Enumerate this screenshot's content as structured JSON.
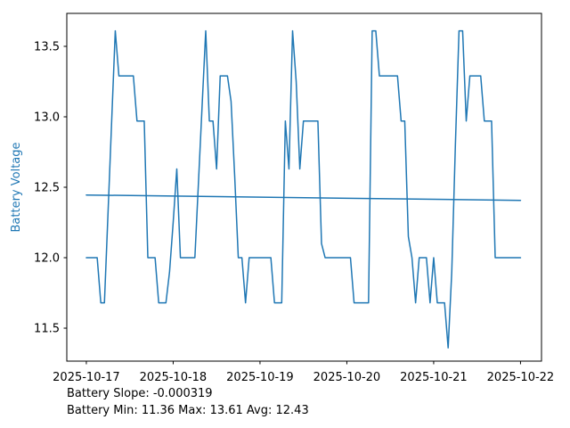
{
  "chart_data": {
    "type": "line",
    "title": "",
    "xlabel": "",
    "ylabel": "Battery Voltage",
    "grid": false,
    "legend": "none",
    "x_tick_labels": [
      "2025-10-17",
      "2025-10-18",
      "2025-10-19",
      "2025-10-20",
      "2025-10-21",
      "2025-10-22"
    ],
    "x_tick_hours": [
      0,
      24,
      48,
      72,
      96,
      120
    ],
    "y_tick_labels": [
      "11.5",
      "12.0",
      "12.5",
      "13.0",
      "13.5"
    ],
    "y_tick_values": [
      11.5,
      12.0,
      12.5,
      13.0,
      13.5
    ],
    "xlim_hours": [
      -5.4,
      125.8
    ],
    "ylim": [
      11.266,
      13.734
    ],
    "colors": {
      "series": "#1f77b4",
      "trend": "#1f77b4",
      "ylabel": "#1f77b4",
      "axis": "#000000",
      "text": "#000000",
      "background": "#ffffff"
    },
    "series": [
      {
        "name": "battery_voltage",
        "x_start_hour": 0,
        "x_step_hours": 1,
        "values": [
          12.0,
          12.0,
          12.0,
          12.0,
          11.68,
          11.68,
          12.32,
          12.97,
          13.61,
          13.29,
          13.29,
          13.29,
          13.29,
          13.29,
          12.97,
          12.97,
          12.97,
          12.0,
          12.0,
          12.0,
          11.68,
          11.68,
          11.68,
          11.9,
          12.25,
          12.63,
          12.0,
          12.0,
          12.0,
          12.0,
          12.0,
          12.54,
          13.08,
          13.61,
          12.97,
          12.97,
          12.63,
          13.29,
          13.29,
          13.29,
          13.11,
          12.58,
          12.0,
          12.0,
          11.68,
          12.0,
          12.0,
          12.0,
          12.0,
          12.0,
          12.0,
          12.0,
          11.68,
          11.68,
          11.68,
          12.97,
          12.63,
          13.61,
          13.25,
          12.63,
          12.97,
          12.97,
          12.97,
          12.97,
          12.97,
          12.1,
          12.0,
          12.0,
          12.0,
          12.0,
          12.0,
          12.0,
          12.0,
          12.0,
          11.68,
          11.68,
          11.68,
          11.68,
          11.68,
          13.61,
          13.61,
          13.29,
          13.29,
          13.29,
          13.29,
          13.29,
          13.29,
          12.97,
          12.97,
          12.15,
          12.0,
          11.68,
          12.0,
          12.0,
          12.0,
          11.68,
          12.0,
          11.68,
          11.68,
          11.68,
          11.36,
          11.9,
          12.8,
          13.61,
          13.61,
          12.97,
          13.29,
          13.29,
          13.29,
          13.29,
          12.97,
          12.97,
          12.97,
          12.0,
          12.0,
          12.0,
          12.0,
          12.0,
          12.0,
          12.0,
          12.0
        ]
      },
      {
        "name": "battery_trend",
        "x_hours": [
          0,
          120
        ],
        "values": [
          12.445,
          12.407
        ]
      }
    ],
    "annotations": [
      "Battery Slope: -0.000319",
      "Battery Min: 11.36 Max: 13.61 Avg: 12.43"
    ],
    "stats": {
      "slope": -0.000319,
      "min": 11.36,
      "max": 13.61,
      "avg": 12.43
    }
  }
}
